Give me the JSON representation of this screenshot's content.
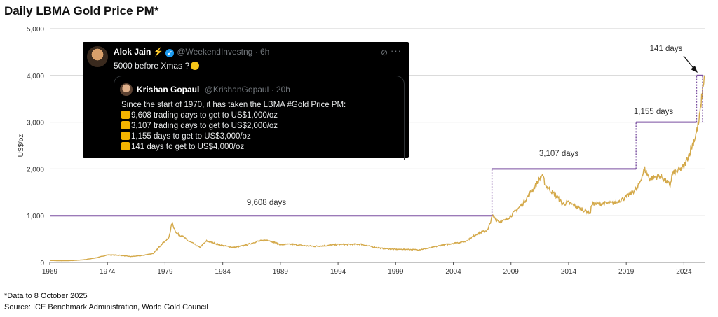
{
  "title": "Daily LBMA Gold Price PM*",
  "footnote": "*Data to 8 October 2025",
  "source": "Source: ICE Benchmark Administration, World Gold Council",
  "colors": {
    "gold": "#d4a94a",
    "purple": "#7a4fa0",
    "grid": "#cfcfcf",
    "annotation": "#333333"
  },
  "chart_data": {
    "type": "line",
    "title": "Daily LBMA Gold Price PM*",
    "ylabel": "US$/oz",
    "xlabel": "",
    "xlim": [
      1969,
      2025.8
    ],
    "ylim": [
      0,
      5000
    ],
    "yticks": [
      0,
      1000,
      2000,
      3000,
      4000,
      5000
    ],
    "ytick_labels": [
      "0",
      "1,000",
      "2,000",
      "3,000",
      "4,000",
      "5,000"
    ],
    "xticks": [
      1969,
      1974,
      1979,
      1984,
      1989,
      1994,
      1999,
      2004,
      2009,
      2014,
      2019,
      2024
    ],
    "xtick_labels": [
      "1969",
      "1974",
      "1979",
      "1984",
      "1989",
      "1994",
      "1999",
      "2004",
      "2009",
      "2014",
      "2019",
      "2024"
    ],
    "grid": "horizontal",
    "series": [
      {
        "x": [
          1969,
          1970,
          1971,
          1972,
          1973,
          1974,
          1975,
          1976,
          1977,
          1978,
          1978.8,
          1979.3,
          1979.6,
          1980,
          1980.5,
          1981,
          1981.5,
          1982,
          1982.6,
          1983,
          1984,
          1985,
          1986,
          1987,
          1987.9,
          1988.5,
          1989,
          1990,
          1991,
          1992,
          1993,
          1994,
          1995,
          1996,
          1997,
          1998,
          1999,
          2000,
          2001,
          2002,
          2003,
          2004,
          2005,
          2006,
          2007,
          2007.4,
          2008,
          2008.5,
          2009,
          2010,
          2011,
          2011.7,
          2012,
          2013,
          2013.5,
          2014,
          2015,
          2015.9,
          2016,
          2017,
          2018,
          2019,
          2019.5,
          2020,
          2020.6,
          2021,
          2022,
          2022.8,
          2023,
          2023.5,
          2024,
          2024.5,
          2025,
          2025.3,
          2025.77
        ],
        "values": [
          42,
          36,
          40,
          58,
          97,
          160,
          155,
          125,
          148,
          193,
          420,
          510,
          840,
          620,
          560,
          460,
          400,
          320,
          460,
          430,
          360,
          320,
          370,
          450,
          480,
          430,
          380,
          390,
          360,
          345,
          360,
          385,
          385,
          390,
          330,
          295,
          280,
          280,
          270,
          310,
          370,
          410,
          445,
          600,
          700,
          1000,
          870,
          900,
          1000,
          1250,
          1600,
          1870,
          1650,
          1400,
          1250,
          1280,
          1150,
          1060,
          1250,
          1260,
          1270,
          1400,
          1500,
          1600,
          2000,
          1800,
          1850,
          1650,
          1900,
          1950,
          2050,
          2350,
          2700,
          3000,
          4000
        ]
      }
    ],
    "thresholds": [
      {
        "level": 1000,
        "label": "9,608 days"
      },
      {
        "level": 2000,
        "label": "3,107 days"
      },
      {
        "level": 3000,
        "label": "1,155 days"
      },
      {
        "level": 4000,
        "label": "141 days"
      }
    ]
  },
  "tweet": {
    "author_name": "Alok Jain",
    "author_handle": "@WeekendInvestng · 6h",
    "text": "5000 before Xmas ?",
    "quote": {
      "author_name": "Krishan Gopaul",
      "author_handle": "@KrishanGopaul · 20h",
      "intro": "Since the start of 1970, it has taken the LBMA #Gold Price PM:",
      "lines": [
        "9,608 trading days to get to US$1,000/oz",
        "3,107 trading days to get to US$2,000/oz",
        "1,155 days to get to US$3,000/oz",
        "141 days to get to US$4,000/oz"
      ]
    }
  }
}
